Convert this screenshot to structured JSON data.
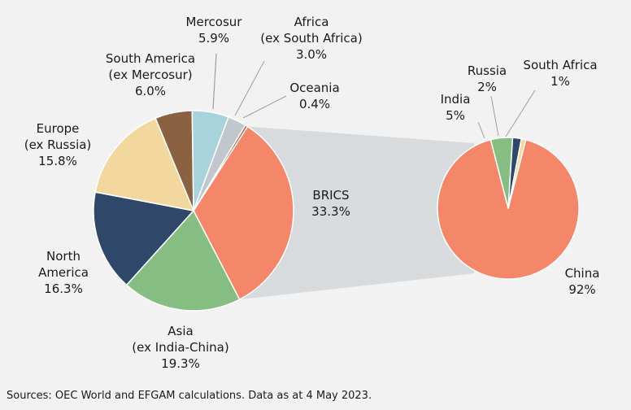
{
  "chart_data": [
    {
      "type": "pie",
      "title": "",
      "slices": [
        {
          "label": [
            "BRICS",
            "33.3%"
          ],
          "value": 33.3,
          "color": "#f4876a"
        },
        {
          "label": [
            "Asia",
            "(ex India-China)",
            "19.3%"
          ],
          "value": 19.3,
          "color": "#86bd82"
        },
        {
          "label": [
            "North",
            "America",
            "16.3%"
          ],
          "value": 16.3,
          "color": "#2f486a"
        },
        {
          "label": [
            "Europe",
            "(ex Russia)",
            "15.8%"
          ],
          "value": 15.8,
          "color": "#f2d89f"
        },
        {
          "label": [
            "South America",
            "(ex Mercosur)",
            "6.0%"
          ],
          "value": 6.0,
          "color": "#8a6241"
        },
        {
          "label": [
            "Mercosur",
            "5.9%"
          ],
          "value": 5.9,
          "color": "#a8d3dd"
        },
        {
          "label": [
            "Africa",
            "(ex South Africa)",
            "3.0%"
          ],
          "value": 3.0,
          "color": "#c1c7cc"
        },
        {
          "label": [
            "Oceania",
            "0.4%"
          ],
          "value": 0.4,
          "color": "#b55a3c"
        }
      ]
    },
    {
      "type": "pie",
      "title": "",
      "slices": [
        {
          "label": [
            "China",
            "92%"
          ],
          "value": 92,
          "color": "#f4876a"
        },
        {
          "label": [
            "India",
            "5%"
          ],
          "value": 5,
          "color": "#86bd82"
        },
        {
          "label": [
            "Russia",
            "2%"
          ],
          "value": 2,
          "color": "#2f486a"
        },
        {
          "label": [
            "South Africa",
            "1%"
          ],
          "value": 1,
          "color": "#f2d89f"
        }
      ]
    }
  ],
  "source_note": "Sources: OEC World and EFGAM calculations. Data as at 4 May 2023."
}
